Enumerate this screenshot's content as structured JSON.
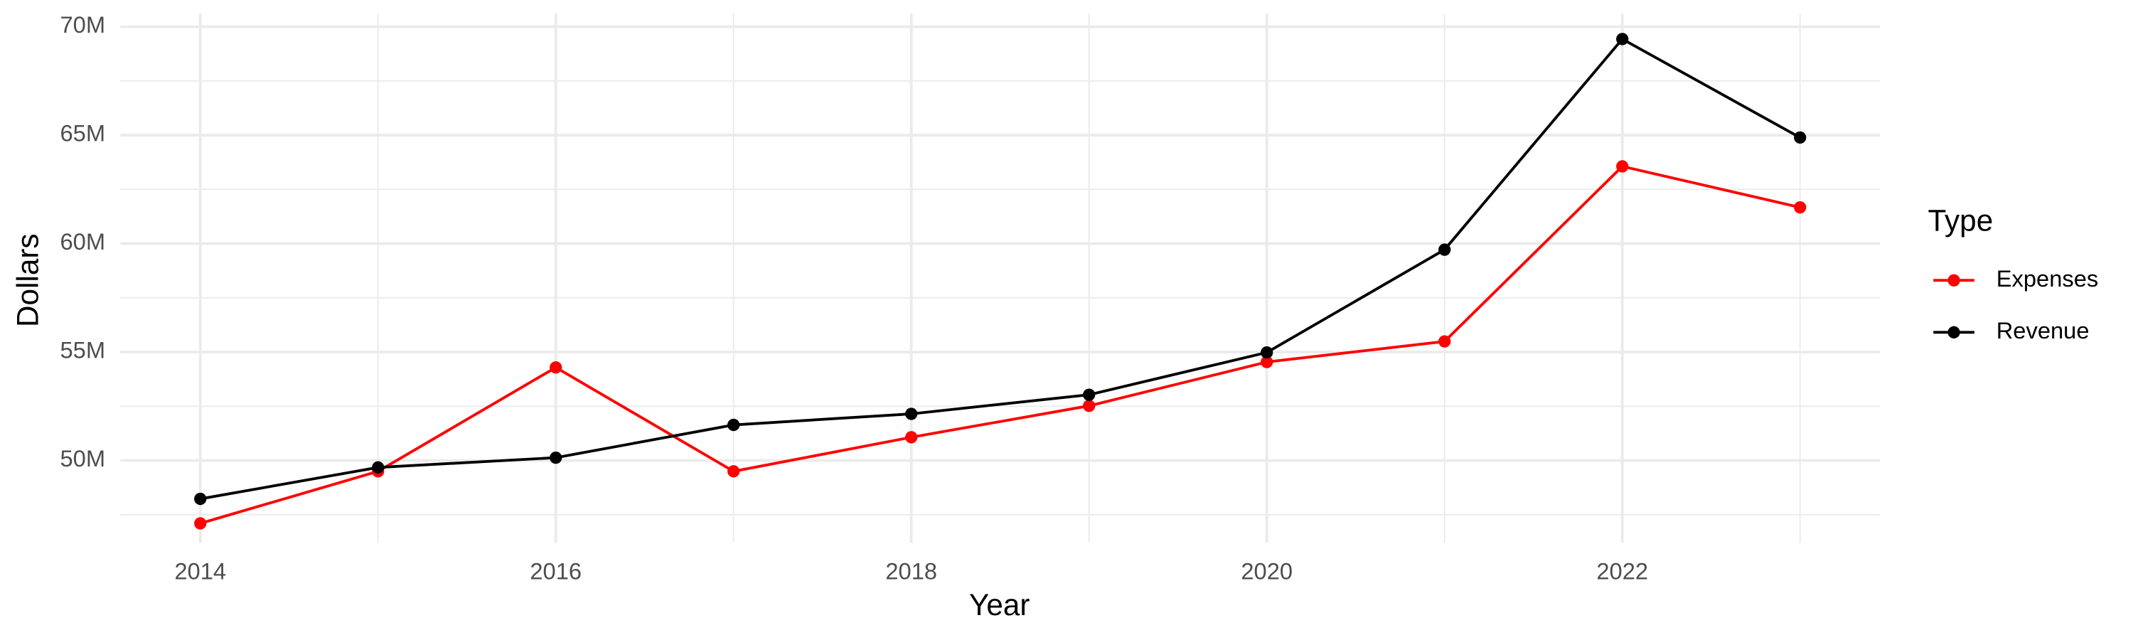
{
  "chart_data": {
    "type": "line",
    "x_label": "Year",
    "y_label": "Dollars",
    "legend_title": "Type",
    "legend_position": "right",
    "grid": true,
    "x": [
      2014,
      2015,
      2016,
      2017,
      2018,
      2019,
      2020,
      2021,
      2022,
      2023
    ],
    "series": [
      {
        "name": "Expenses",
        "color": "#ff0000",
        "values": [
          47100000,
          49500000,
          54290000,
          49500000,
          51070000,
          52520000,
          54540000,
          55490000,
          63560000,
          61670000
        ]
      },
      {
        "name": "Revenue",
        "color": "#000000",
        "values": [
          48230000,
          49680000,
          50130000,
          51640000,
          52150000,
          53030000,
          54980000,
          59720000,
          69430000,
          64890000
        ]
      }
    ],
    "xlim": [
      2013.55,
      2023.45
    ],
    "xticks": [
      2014,
      2016,
      2018,
      2020,
      2022
    ],
    "ylim": [
      46200000,
      70600000
    ],
    "yticks": [
      {
        "value": 50000000,
        "label": "50M"
      },
      {
        "value": 55000000,
        "label": "55M"
      },
      {
        "value": 60000000,
        "label": "60M"
      },
      {
        "value": 65000000,
        "label": "65M"
      },
      {
        "value": 70000000,
        "label": "70M"
      }
    ]
  }
}
